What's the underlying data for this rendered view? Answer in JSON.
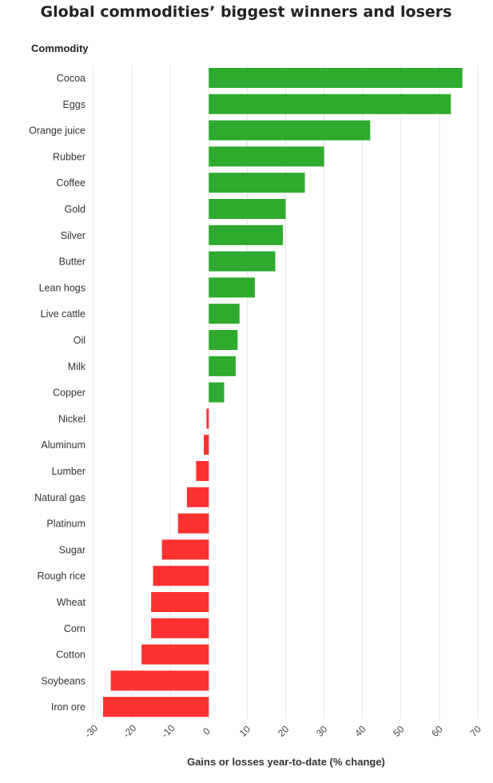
{
  "chart_data": {
    "type": "bar",
    "orientation": "horizontal",
    "title": "Global commodities’ biggest winners and losers",
    "ylabel": "Commodity",
    "xlabel": "Gains or losses year-to-date (% change)",
    "xlim": [
      -30,
      70
    ],
    "xticks": [
      "-30",
      "-20",
      "-10",
      "0",
      "10",
      "20",
      "30",
      "40",
      "50",
      "60",
      "70"
    ],
    "grid": true,
    "positive_color": "#2eaa2e",
    "negative_color": "#ff3030",
    "categories": [
      "Cocoa",
      "Eggs",
      "Orange juice",
      "Rubber",
      "Coffee",
      "Gold",
      "Silver",
      "Butter",
      "Lean hogs",
      "Live cattle",
      "Oil",
      "Milk",
      "Copper",
      "Nickel",
      "Aluminum",
      "Lumber",
      "Natural gas",
      "Platinum",
      "Sugar",
      "Rough rice",
      "Wheat",
      "Corn",
      "Cotton",
      "Soybeans",
      "Iron ore"
    ],
    "values": [
      66,
      63,
      42,
      30,
      25,
      20,
      19.3,
      17.3,
      12,
      8,
      7.5,
      7,
      4,
      -0.6,
      -1.3,
      -3.3,
      -5.7,
      -8,
      -12.2,
      -14.5,
      -15,
      -15,
      -17.5,
      -25.5,
      -27.5
    ]
  }
}
